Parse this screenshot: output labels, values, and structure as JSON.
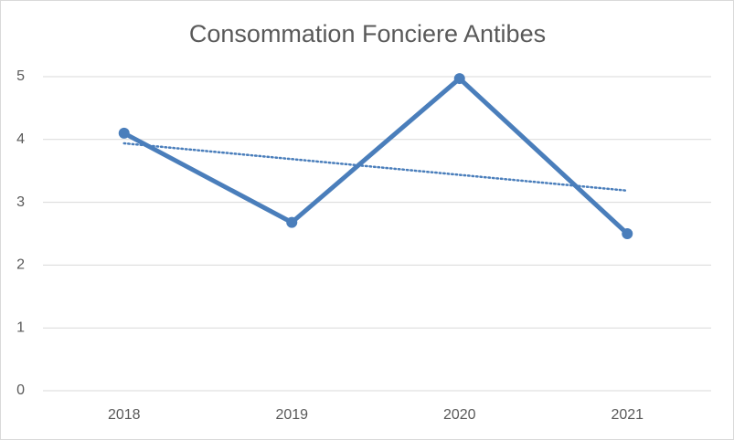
{
  "chart_data": {
    "type": "line",
    "title": "Consommation Fonciere Antibes",
    "categories": [
      "2018",
      "2019",
      "2020",
      "2021"
    ],
    "values": [
      4.1,
      2.68,
      4.97,
      2.5
    ],
    "color": "#4a7ebb",
    "trendline": "linear",
    "ylim": [
      0,
      5
    ],
    "yticks": [
      0,
      1,
      2,
      3,
      4,
      5
    ],
    "grid": true
  }
}
